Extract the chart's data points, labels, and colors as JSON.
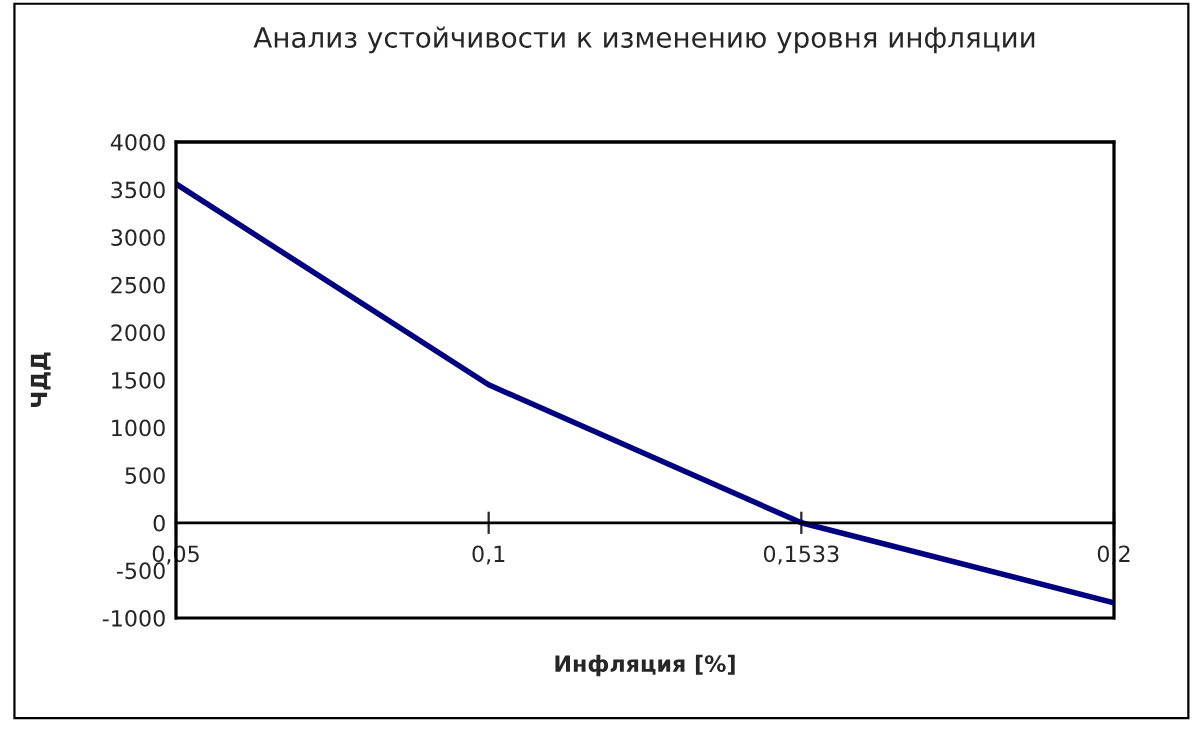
{
  "chart_data": {
    "type": "line",
    "title": "Анализ устойчивости к изменению уровня инфляции",
    "xlabel": "Инфляция [%]",
    "ylabel": "ЧДД",
    "categories": [
      "0,05",
      "0,1",
      "0,1533",
      "0,2"
    ],
    "series": [
      {
        "color": "#000080",
        "values": [
          3560,
          1450,
          0,
          -840
        ]
      }
    ],
    "ylim": [
      -1000,
      4000
    ],
    "yticks": [
      -1000,
      -500,
      0,
      500,
      1000,
      1500,
      2000,
      2500,
      3000,
      3500,
      4000
    ],
    "grid": false,
    "marker": "none",
    "line_style": "solid"
  }
}
